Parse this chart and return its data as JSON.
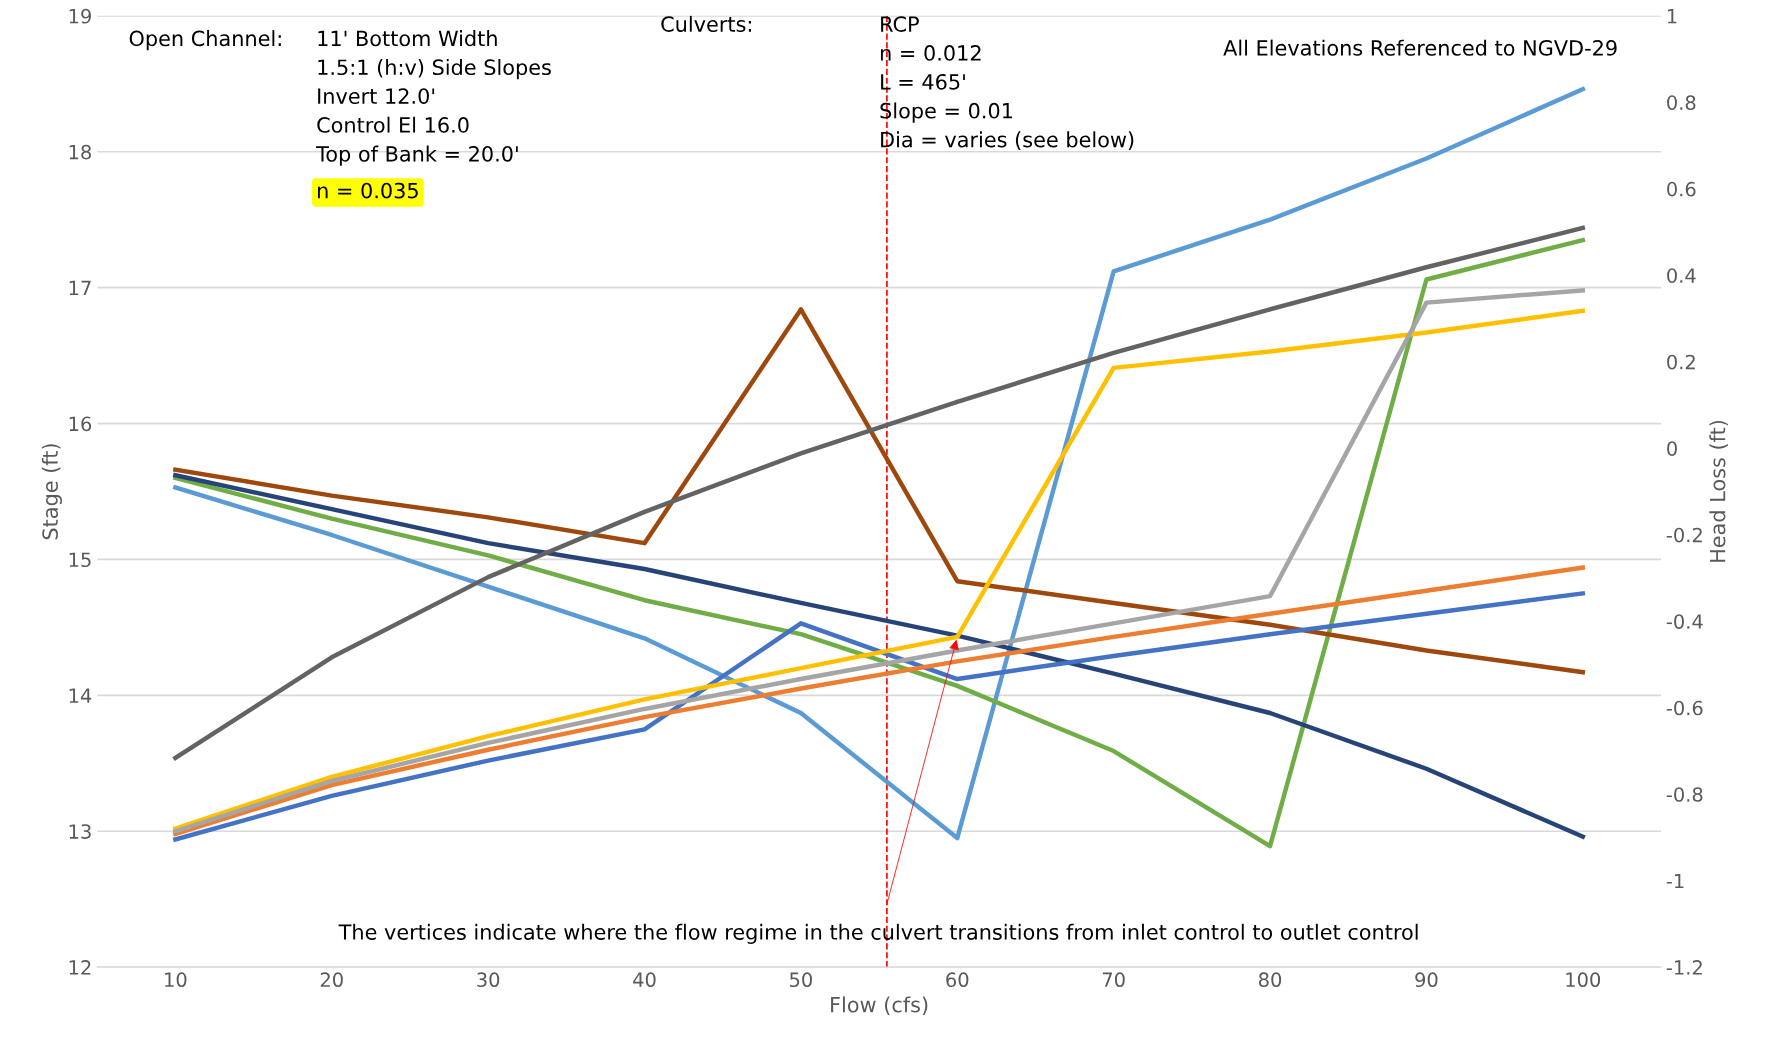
{
  "chart_data": {
    "type": "line",
    "xlabel": "Flow (cfs)",
    "ylabel": "Stage (ft)",
    "y2label": "Head Loss (ft)",
    "x": [
      10,
      20,
      30,
      40,
      50,
      60,
      70,
      80,
      90,
      100
    ],
    "xlim": [
      5,
      105
    ],
    "xticks": [
      10,
      20,
      30,
      40,
      50,
      60,
      70,
      80,
      90,
      100
    ],
    "ylim": [
      12,
      19
    ],
    "yticks": [
      12,
      13,
      14,
      15,
      16,
      17,
      18,
      19
    ],
    "y2lim": [
      -1.2,
      1
    ],
    "y2ticks": [
      -1.2,
      -1,
      -0.8,
      -0.6,
      -0.4,
      -0.2,
      0,
      0.2,
      0.4,
      0.6,
      0.8,
      1
    ],
    "grid": "y",
    "legend": false,
    "marker": "none",
    "line_style": "solid",
    "series": [
      {
        "color": "#5b9bd5",
        "values": [
          15.53,
          15.18,
          14.8,
          14.42,
          13.87,
          12.95,
          17.12,
          17.5,
          17.95,
          18.46
        ]
      },
      {
        "color": "#70ad47",
        "values": [
          15.6,
          15.3,
          15.03,
          14.7,
          14.45,
          14.07,
          13.59,
          12.89,
          17.06,
          17.35
        ]
      },
      {
        "color": "#264478",
        "values": [
          15.62,
          15.37,
          15.12,
          14.93,
          14.68,
          14.44,
          14.16,
          13.87,
          13.46,
          12.96
        ]
      },
      {
        "color": "#9e480e",
        "values": [
          15.66,
          15.47,
          15.31,
          15.12,
          16.84,
          14.84,
          14.68,
          14.52,
          14.33,
          14.17
        ]
      },
      {
        "color": "#636363",
        "values": [
          13.54,
          14.28,
          14.87,
          15.35,
          15.78,
          16.16,
          16.52,
          16.84,
          17.15,
          17.44
        ]
      },
      {
        "color": "#4472c4",
        "values": [
          12.94,
          13.26,
          13.52,
          13.75,
          14.53,
          14.12,
          14.29,
          14.45,
          14.6,
          14.75
        ]
      },
      {
        "color": "#ed7d31",
        "values": [
          12.98,
          13.34,
          13.6,
          13.84,
          14.05,
          14.25,
          14.43,
          14.6,
          14.77,
          14.94
        ]
      },
      {
        "color": "#ffc000",
        "values": [
          13.02,
          13.4,
          13.7,
          13.97,
          14.2,
          14.43,
          16.41,
          16.53,
          16.67,
          16.83
        ]
      },
      {
        "color": "#a5a5a5",
        "values": [
          13.0,
          13.37,
          13.65,
          13.9,
          14.12,
          14.33,
          14.53,
          14.73,
          16.89,
          16.98
        ]
      }
    ],
    "ref_lines": [
      {
        "axis": "x",
        "value": 55.5,
        "label": null,
        "color": "#ff0000",
        "line_style": "dashed"
      }
    ],
    "annotations": [
      "Open Channel:",
      "11' Bottom Width\n1.5:1 (h:v) Side Slopes\nInvert 12.0'\nControl El 16.0\nTop of Bank = 20.0'",
      "n = 0.035",
      "Culverts:",
      "RCP\nn = 0.012\nL = 465'\nSlope = 0.01\nDia = varies (see below)",
      "All Elevations Referenced to NGVD-29",
      {
        "text": "The vertices indicate where the flow regime in the culvert transitions from inlet control to outlet control",
        "x": 60,
        "y": 14.43
      }
    ]
  }
}
